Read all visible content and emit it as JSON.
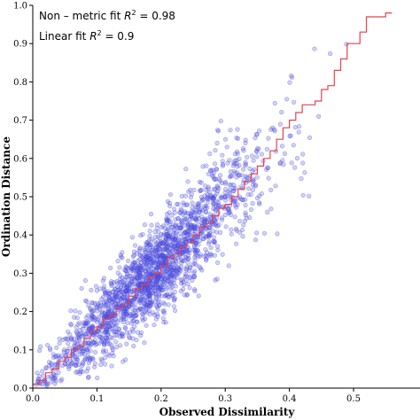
{
  "chart_data": {
    "type": "scatter",
    "title": "",
    "xlabel": "Observed Dissimilarity",
    "ylabel": "Ordination Distance",
    "xlim": [
      0,
      0.6
    ],
    "ylim": [
      0,
      1.0
    ],
    "xticks": [
      "0.0",
      "0.1",
      "0.2",
      "0.3",
      "0.4",
      "0.5"
    ],
    "yticks": [
      "0.0",
      "0.1",
      "0.2",
      "0.3",
      "0.4",
      "0.5",
      "0.6",
      "0.7",
      "0.8",
      "0.9",
      "1.0"
    ],
    "grid": false,
    "annotations": {
      "line1_prefix": "Non – metric fit ",
      "line1_r": "R",
      "line1_sup": "2",
      "line1_value": " = 0.98",
      "line2_prefix": "Linear fit ",
      "line2_r": "R",
      "line2_sup": "2",
      "line2_value": " = 0.9"
    },
    "scatter_summary": {
      "approx_point_count": 2000,
      "trend": "approximately y = 1.6x",
      "x_range": [
        0.0,
        0.56
      ],
      "y_range": [
        0.0,
        0.98
      ]
    },
    "colors": {
      "points": "#5a5ae6",
      "step_line": "#e8414f"
    },
    "step_fit": [
      [
        0.0,
        0.01
      ],
      [
        0.01,
        0.02
      ],
      [
        0.02,
        0.04
      ],
      [
        0.03,
        0.05
      ],
      [
        0.04,
        0.07
      ],
      [
        0.05,
        0.08
      ],
      [
        0.06,
        0.1
      ],
      [
        0.07,
        0.11
      ],
      [
        0.08,
        0.13
      ],
      [
        0.09,
        0.15
      ],
      [
        0.1,
        0.16
      ],
      [
        0.11,
        0.18
      ],
      [
        0.12,
        0.19
      ],
      [
        0.13,
        0.21
      ],
      [
        0.14,
        0.22
      ],
      [
        0.15,
        0.24
      ],
      [
        0.16,
        0.26
      ],
      [
        0.17,
        0.27
      ],
      [
        0.18,
        0.29
      ],
      [
        0.19,
        0.3
      ],
      [
        0.2,
        0.32
      ],
      [
        0.21,
        0.34
      ],
      [
        0.22,
        0.35
      ],
      [
        0.23,
        0.37
      ],
      [
        0.24,
        0.38
      ],
      [
        0.25,
        0.4
      ],
      [
        0.26,
        0.42
      ],
      [
        0.27,
        0.43
      ],
      [
        0.28,
        0.45
      ],
      [
        0.29,
        0.47
      ],
      [
        0.3,
        0.48
      ],
      [
        0.31,
        0.5
      ],
      [
        0.32,
        0.52
      ],
      [
        0.33,
        0.54
      ],
      [
        0.34,
        0.56
      ],
      [
        0.35,
        0.58
      ],
      [
        0.36,
        0.6
      ],
      [
        0.37,
        0.62
      ],
      [
        0.38,
        0.65
      ],
      [
        0.39,
        0.68
      ],
      [
        0.4,
        0.7
      ],
      [
        0.41,
        0.72
      ],
      [
        0.42,
        0.74
      ],
      [
        0.44,
        0.75
      ],
      [
        0.45,
        0.78
      ],
      [
        0.46,
        0.79
      ],
      [
        0.47,
        0.83
      ],
      [
        0.48,
        0.86
      ],
      [
        0.49,
        0.9
      ],
      [
        0.51,
        0.93
      ],
      [
        0.52,
        0.97
      ],
      [
        0.55,
        0.98
      ],
      [
        0.56,
        0.98
      ]
    ]
  }
}
